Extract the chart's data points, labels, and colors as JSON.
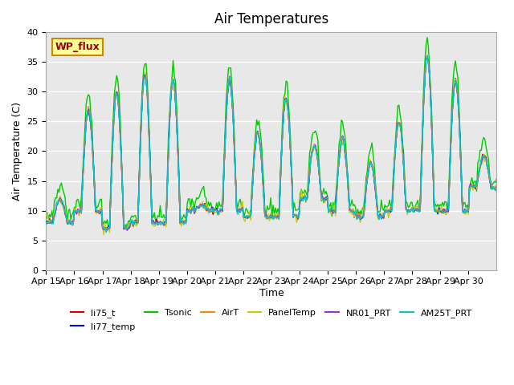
{
  "title": "Air Temperatures",
  "xlabel": "Time",
  "ylabel": "Air Temperature (C)",
  "ylim": [
    0,
    40
  ],
  "yticks": [
    0,
    5,
    10,
    15,
    20,
    25,
    30,
    35,
    40
  ],
  "x_labels": [
    "Apr 15",
    "Apr 16",
    "Apr 17",
    "Apr 18",
    "Apr 19",
    "Apr 20",
    "Apr 21",
    "Apr 22",
    "Apr 23",
    "Apr 24",
    "Apr 25",
    "Apr 26",
    "Apr 27",
    "Apr 28",
    "Apr 29",
    "Apr 30"
  ],
  "series_colors": {
    "li75_t": "#cc0000",
    "li77_temp": "#0000cc",
    "Tsonic": "#00cc00",
    "AirT": "#ff8800",
    "PanelTemp": "#cccc00",
    "NR01_PRT": "#9933cc",
    "AM25T_PRT": "#00cccc"
  },
  "legend_box_color": "#ffff99",
  "legend_box_edge": "#cc8800",
  "legend_text_color": "#990000",
  "legend_label": "WP_flux",
  "background_color": "#e8e8e8",
  "grid_color": "#ffffff",
  "title_fontsize": 12
}
